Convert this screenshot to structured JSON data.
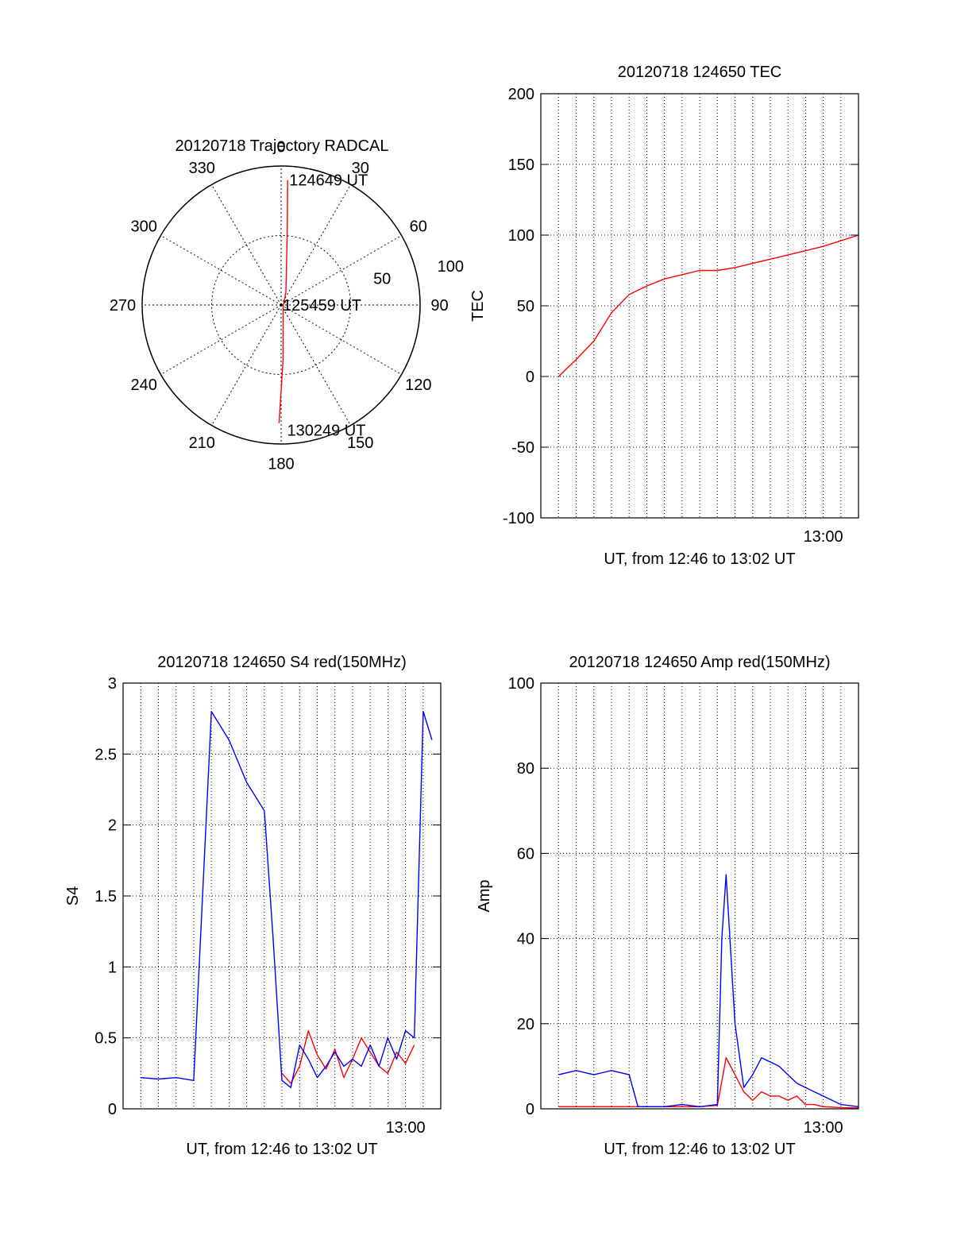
{
  "chart_data": [
    {
      "type": "polar",
      "title": "20120718 Trajectory RADCAL",
      "azimuth_labels": [
        "0",
        "30",
        "60",
        "90",
        "120",
        "150",
        "180",
        "210",
        "240",
        "270",
        "300",
        "330"
      ],
      "radial_labels": [
        "50",
        "100"
      ],
      "rlim": [
        0,
        100
      ],
      "grid": true,
      "series": [
        {
          "color": "#ff0000",
          "points": [
            {
              "azimuth": 3,
              "radius": 90
            },
            {
              "azimuth": 5,
              "radius": 50
            },
            {
              "azimuth": 20,
              "radius": 10
            },
            {
              "azimuth": 135,
              "radius": 2
            },
            {
              "azimuth": 178,
              "radius": 40
            },
            {
              "azimuth": 181,
              "radius": 85
            }
          ]
        }
      ],
      "annotations": [
        {
          "text": "124649 UT",
          "azimuth": 3,
          "radius": 90
        },
        {
          "text": "125459 UT",
          "azimuth": 90,
          "radius": 0
        },
        {
          "text": "130249 UT",
          "azimuth": 178,
          "radius": 90
        }
      ]
    },
    {
      "type": "line",
      "title": "20120718 124650 TEC",
      "xlabel": "UT, from 12:46 to 13:02 UT",
      "ylabel": "TEC",
      "xlim": [
        12.7333,
        13.0333
      ],
      "ylim": [
        -100,
        200
      ],
      "x_tick_labels": [
        {
          "x": 13.0,
          "label": "13:00"
        }
      ],
      "y_ticks": [
        -100,
        -50,
        0,
        50,
        100,
        150,
        200
      ],
      "grid": true,
      "series": [
        {
          "color": "#ff0000",
          "x": [
            12.75,
            12.7667,
            12.7833,
            12.8,
            12.8167,
            12.8333,
            12.85,
            12.8667,
            12.8833,
            12.9,
            12.9167,
            12.9333,
            12.95,
            12.9667,
            12.9833,
            13.0,
            13.0167,
            13.0333
          ],
          "y": [
            0,
            12,
            25,
            45,
            58,
            64,
            69,
            72,
            75,
            75,
            77,
            80,
            83,
            86,
            89,
            92,
            96,
            100
          ]
        }
      ]
    },
    {
      "type": "line",
      "title": "20120718 124650 S4 red(150MHz)",
      "xlabel": "UT, from 12:46 to 13:02 UT",
      "ylabel": "S4",
      "xlim": [
        12.7333,
        13.0333
      ],
      "ylim": [
        0,
        3
      ],
      "x_tick_labels": [
        {
          "x": 13.0,
          "label": "13:00"
        }
      ],
      "y_ticks": [
        0,
        0.5,
        1,
        1.5,
        2,
        2.5,
        3
      ],
      "grid": true,
      "series": [
        {
          "color": "#ff0000",
          "x": [
            12.8833,
            12.8917,
            12.9,
            12.9083,
            12.9167,
            12.925,
            12.9333,
            12.9417,
            12.95,
            12.9583,
            12.9667,
            12.975,
            12.9833,
            12.9917,
            13.0,
            13.0083
          ],
          "y": [
            0.25,
            0.18,
            0.3,
            0.55,
            0.38,
            0.28,
            0.42,
            0.22,
            0.35,
            0.5,
            0.4,
            0.3,
            0.25,
            0.4,
            0.32,
            0.45
          ]
        },
        {
          "color": "#0000ff",
          "x": [
            12.75,
            12.7667,
            12.7833,
            12.8,
            12.8167,
            12.8333,
            12.85,
            12.8667,
            12.875,
            12.8833,
            12.8917,
            12.9,
            12.9083,
            12.9167,
            12.925,
            12.9333,
            12.9417,
            12.95,
            12.9583,
            12.9667,
            12.975,
            12.9833,
            12.9917,
            13.0,
            13.0083,
            13.0167,
            13.025
          ],
          "y": [
            0.22,
            0.21,
            0.22,
            0.2,
            2.8,
            2.6,
            2.3,
            2.1,
            1.2,
            0.2,
            0.15,
            0.45,
            0.35,
            0.22,
            0.3,
            0.4,
            0.3,
            0.35,
            0.3,
            0.45,
            0.3,
            0.5,
            0.35,
            0.55,
            0.5,
            2.8,
            2.6
          ]
        }
      ]
    },
    {
      "type": "line",
      "title": "20120718 124650 Amp red(150MHz)",
      "xlabel": "UT, from 12:46 to 13:02 UT",
      "ylabel": "Amp",
      "xlim": [
        12.7333,
        13.0333
      ],
      "ylim": [
        0,
        100
      ],
      "x_tick_labels": [
        {
          "x": 13.0,
          "label": "13:00"
        }
      ],
      "y_ticks": [
        0,
        20,
        40,
        60,
        80,
        100
      ],
      "grid": true,
      "series": [
        {
          "color": "#ff0000",
          "x": [
            12.75,
            12.8333,
            12.85,
            12.8833,
            12.9,
            12.9083,
            12.9167,
            12.925,
            12.9333,
            12.9417,
            12.95,
            12.9583,
            12.9667,
            12.975,
            12.9833,
            12.9917,
            13.0,
            13.0167,
            13.0333
          ],
          "y": [
            0.5,
            0.5,
            0.5,
            0.5,
            0.8,
            12,
            8,
            4,
            2,
            4,
            3,
            3,
            2,
            3,
            1,
            1,
            0.5,
            0.3,
            0.2
          ]
        },
        {
          "color": "#0000ff",
          "x": [
            12.75,
            12.7667,
            12.7833,
            12.8,
            12.8167,
            12.825,
            12.8333,
            12.85,
            12.8667,
            12.8833,
            12.9,
            12.9042,
            12.9083,
            12.9167,
            12.925,
            12.9333,
            12.9417,
            12.95,
            12.9583,
            12.9667,
            12.975,
            12.9833,
            12.9917,
            13.0,
            13.0083,
            13.0167,
            13.0333
          ],
          "y": [
            8,
            9,
            8,
            9,
            8,
            0.5,
            0.5,
            0.5,
            1,
            0.5,
            1,
            40,
            55,
            20,
            5,
            8,
            12,
            11,
            10,
            8,
            6,
            5,
            4,
            3,
            2,
            1,
            0.5
          ]
        }
      ]
    }
  ]
}
